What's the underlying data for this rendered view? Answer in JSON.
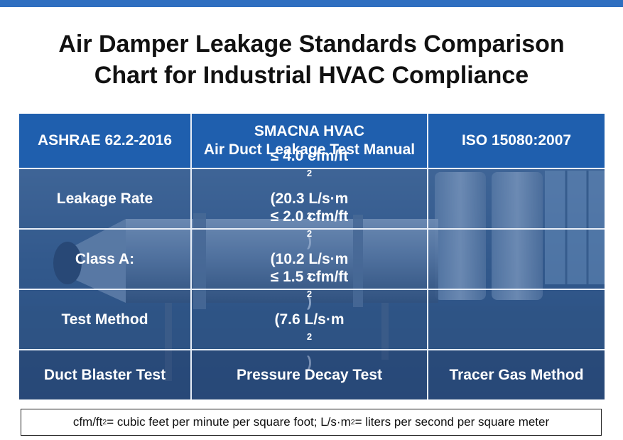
{
  "title": {
    "line1": "Air Damper Leakage Standards Comparison",
    "line2": "Chart for Industrial HVAC Compliance"
  },
  "headers": {
    "col1": "ASHRAE 62.2-2016",
    "col2_line1": "SMACNA HVAC",
    "col2_line2": "Air Duct Leakage Test Manual",
    "col3": "ISO 15080:2007"
  },
  "rows": [
    {
      "label": "Leakage Rate",
      "value_line1": "≤ 4.0 cfm/ft",
      "value_line2_pre": "(20.3 L/s·m",
      "value_line2_post": ")",
      "col3": ""
    },
    {
      "label": "Class A:",
      "value_line1": "≤ 2.0 cfm/ft",
      "value_line2_pre": "(10.2 L/s·m",
      "value_line2_post": ")",
      "col3": ""
    },
    {
      "label": "Test Method",
      "value_line1": "≤ 1.5 cfm/ft",
      "value_line2_pre": "(7.6 L/s·m",
      "value_line2_post": ")",
      "col3": ""
    }
  ],
  "last_row": {
    "col1": "Duct Blaster Test",
    "col2": "Pressure Decay Test",
    "col3": "Tracer Gas Method"
  },
  "superscript": "2",
  "footnote": {
    "part1": "cfm/ft",
    "part2": " = cubic feet per minute per square foot; L/s·m",
    "part3": " = liters per second per square meter"
  },
  "colors": {
    "accent": "#2f6fc0",
    "header_bg": "#1f5fae"
  }
}
